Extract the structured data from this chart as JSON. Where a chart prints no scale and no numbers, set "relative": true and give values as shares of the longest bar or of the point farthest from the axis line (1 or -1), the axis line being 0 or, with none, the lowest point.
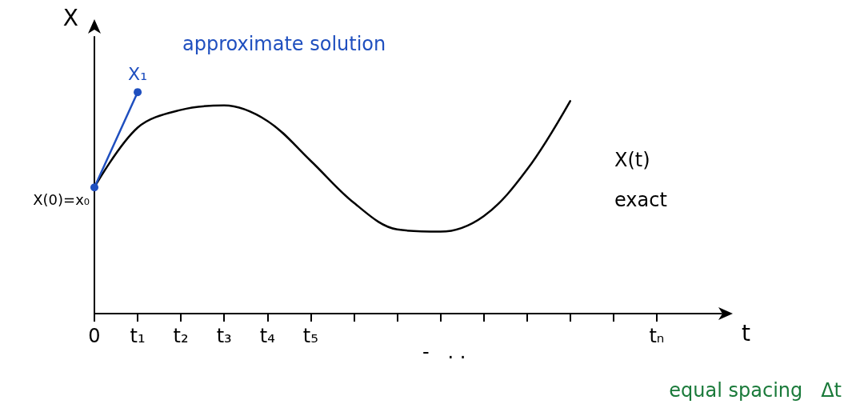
{
  "chart_data": {
    "type": "line",
    "relative": true,
    "xlabel": "t",
    "ylabel": "X",
    "categories": [
      "0",
      "t₁",
      "t₂",
      "t₃",
      "t₄",
      "t₅",
      null,
      null,
      null,
      null,
      null,
      null,
      null,
      "tₙ"
    ],
    "series": [
      {
        "color": "#000000",
        "marker": "none",
        "values": [
          0.57,
          0.84,
          0.92,
          0.94,
          0.87,
          0.69,
          0.5,
          0.38,
          0.37,
          0.44,
          0.65,
          0.96,
          null,
          null
        ]
      },
      {
        "color": "#1f4fbf",
        "marker": "circle",
        "values": [
          0.57,
          1.0,
          null,
          null,
          null,
          null,
          null,
          null,
          null,
          null,
          null,
          null,
          null,
          null
        ]
      }
    ],
    "annotations": [
      "approximate solution",
      {
        "text": "X₁",
        "x": "t₁",
        "y": 1.0
      },
      {
        "text": "X(0)=x₀",
        "x": "0",
        "y": 0.57
      },
      "X(t)",
      "exact",
      "-   . .",
      "equal spacing   Δt"
    ]
  }
}
